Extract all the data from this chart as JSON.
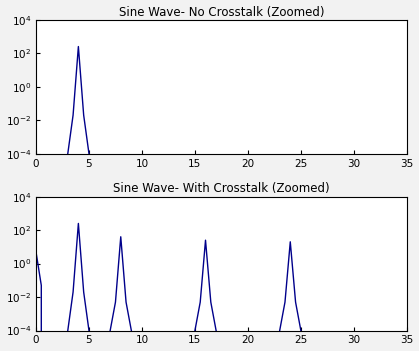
{
  "title1": "Sine Wave- No Crosstalk (Zoomed)",
  "title2": "Sine Wave- With Crosstalk (Zoomed)",
  "xlim": [
    0,
    35
  ],
  "ylim": [
    0.0001,
    10000.0
  ],
  "line_color": "#00008B",
  "line_width": 1.0,
  "background_color": "#f2f2f2",
  "axes_color": "#ffffff",
  "plot1_spikes": [
    [
      3,
      0.0001
    ],
    [
      3.5,
      0.02
    ],
    [
      4,
      250
    ],
    [
      4.5,
      0.02
    ],
    [
      5,
      0.0001
    ]
  ],
  "plot2_spikes": [
    [
      0,
      5.0
    ],
    [
      0.5,
      0.05
    ],
    [
      3,
      0.0001
    ],
    [
      3.5,
      0.02
    ],
    [
      4,
      250
    ],
    [
      4.5,
      0.02
    ],
    [
      5,
      0.0001
    ],
    [
      7,
      0.0001
    ],
    [
      7.5,
      0.005
    ],
    [
      8,
      40
    ],
    [
      8.5,
      0.005
    ],
    [
      9,
      0.0001
    ],
    [
      15,
      0.0001
    ],
    [
      15.5,
      0.005
    ],
    [
      16,
      25
    ],
    [
      16.5,
      0.005
    ],
    [
      17,
      0.0001
    ],
    [
      23,
      0.0001
    ],
    [
      23.5,
      0.005
    ],
    [
      24,
      20
    ],
    [
      24.5,
      0.005
    ],
    [
      25,
      0.0001
    ]
  ]
}
